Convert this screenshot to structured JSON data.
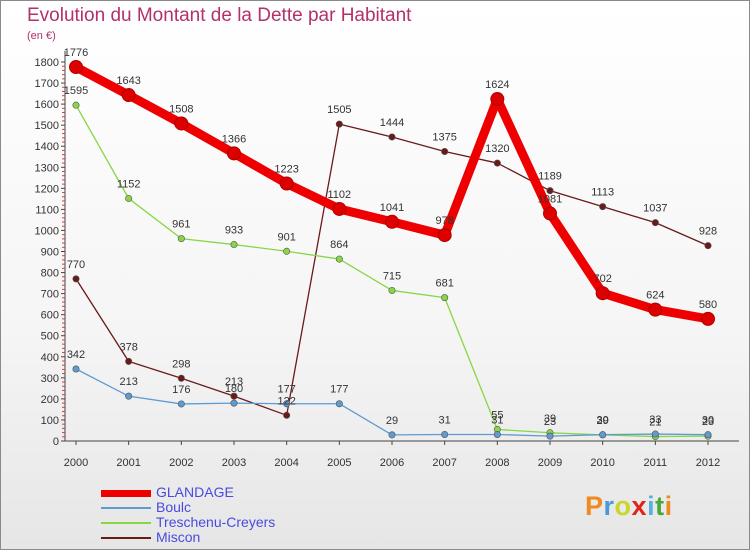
{
  "chart_data": {
    "type": "line",
    "title": "Evolution du Montant de la Dette par Habitant",
    "unit_label": "(en €)",
    "x": [
      "2000",
      "2001",
      "2002",
      "2003",
      "2004",
      "2005",
      "2006",
      "2007",
      "2008",
      "2009",
      "2010",
      "2011",
      "2012"
    ],
    "y_ticks": [
      0,
      100,
      200,
      300,
      400,
      500,
      600,
      700,
      800,
      900,
      1000,
      1100,
      1200,
      1300,
      1400,
      1500,
      1600,
      1700,
      1800
    ],
    "ylim": [
      0,
      1800
    ],
    "grid": false,
    "legend_placement": "bottom-left",
    "series": [
      {
        "name": "GLANDAGE",
        "color": "#ee0000",
        "width": 9,
        "values": [
          1776,
          1643,
          1508,
          1366,
          1223,
          1102,
          1041,
          978,
          1624,
          1081,
          702,
          624,
          580
        ],
        "labels": [
          "1776",
          "1643",
          "1508",
          "1366",
          "1223",
          "1102",
          "1041",
          "978",
          "1624",
          "1081",
          "702",
          "624",
          "580"
        ]
      },
      {
        "name": "Boulc",
        "color": "#5f9bd0",
        "width": 1.3,
        "values": [
          342,
          213,
          176,
          180,
          177,
          177,
          29,
          31,
          31,
          23,
          30,
          33,
          30
        ],
        "labels": [
          "342",
          "213",
          "176",
          "180",
          "177",
          "177",
          "29",
          "31",
          "31",
          "23",
          "30",
          "33",
          "30"
        ]
      },
      {
        "name": "Treschenu-Creyers",
        "color": "#88d645",
        "width": 1.3,
        "values": [
          1595,
          1152,
          961,
          933,
          901,
          864,
          715,
          681,
          55,
          39,
          29,
          21,
          23
        ],
        "labels": [
          "1595",
          "1152",
          "961",
          "933",
          "901",
          "864",
          "715",
          "681",
          "55",
          "39",
          "29",
          "21",
          "23"
        ]
      },
      {
        "name": "Miscon",
        "color": "#6b1a1a",
        "width": 1.3,
        "values": [
          770,
          378,
          298,
          213,
          122,
          1505,
          1444,
          1375,
          1320,
          1189,
          1113,
          1037,
          928
        ],
        "labels": [
          "770",
          "378",
          "298",
          "213",
          "122",
          "1505",
          "1444",
          "1375",
          "1320",
          "1189",
          "1113",
          "1037",
          "928"
        ]
      }
    ]
  },
  "logo": {
    "text": "Proxiti",
    "colors": [
      "#f0891e",
      "#4a9ad8",
      "#c9d62a",
      "#e2231a",
      "#59b0e0",
      "#4aa83a",
      "#f0891e"
    ]
  }
}
